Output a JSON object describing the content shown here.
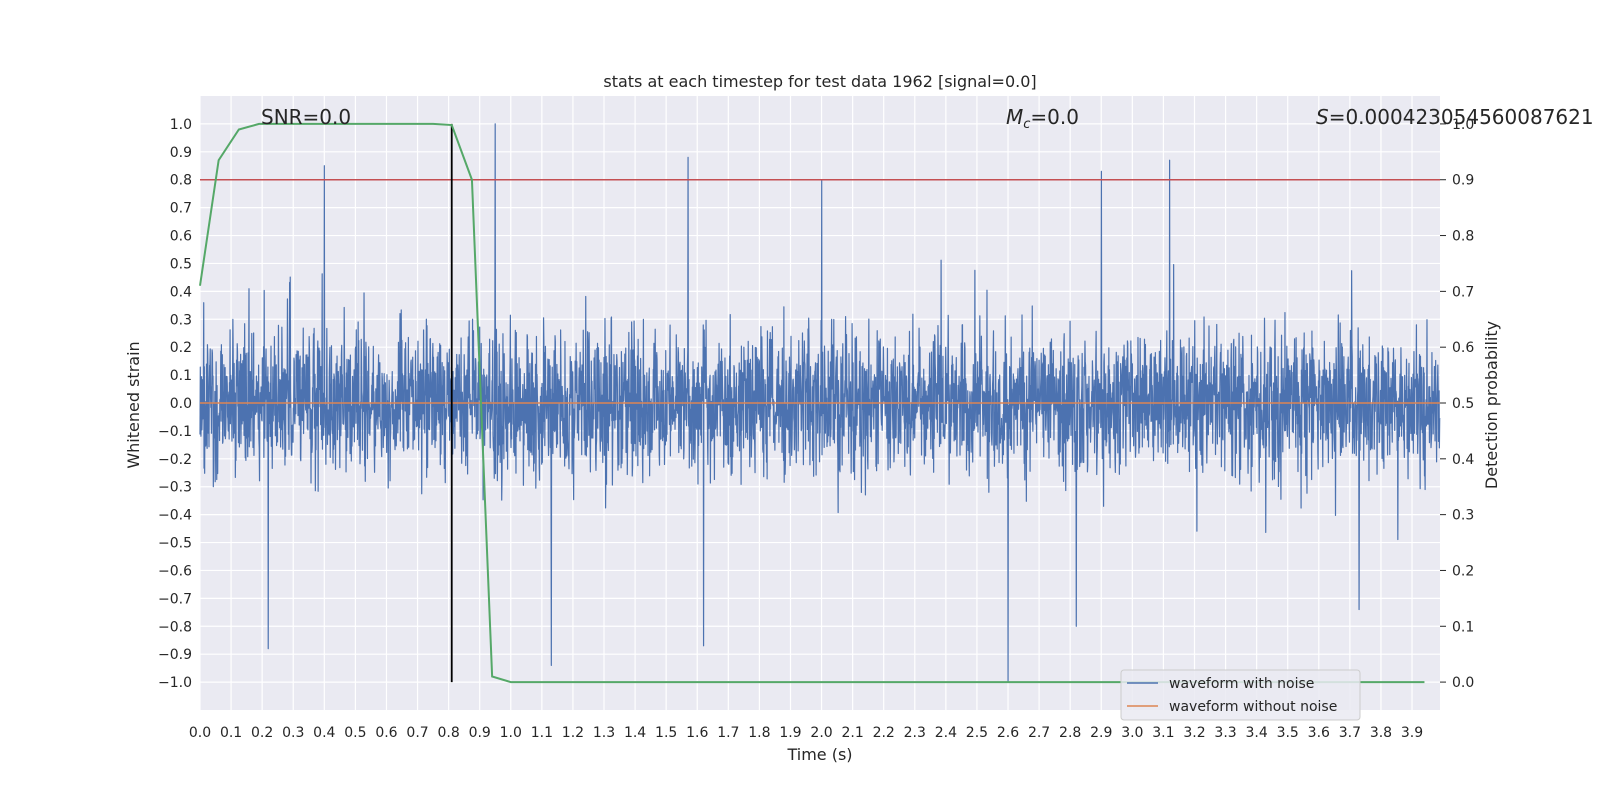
{
  "chart_data": {
    "type": "line",
    "title": "stats at each timestep for test data 1962 [signal=0.0]",
    "xlabel": "Time (s)",
    "ylabel": "Whitened strain",
    "y2label": "Detection probability",
    "xlim": [
      0.0,
      3.99
    ],
    "ylim": [
      -1.1,
      1.1
    ],
    "y2lim": [
      -0.05,
      1.05
    ],
    "x_ticks": [
      "0.0",
      "0.1",
      "0.2",
      "0.3",
      "0.4",
      "0.5",
      "0.6",
      "0.7",
      "0.8",
      "0.9",
      "1.0",
      "1.1",
      "1.2",
      "1.3",
      "1.4",
      "1.5",
      "1.6",
      "1.7",
      "1.8",
      "1.9",
      "2.0",
      "2.1",
      "2.2",
      "2.3",
      "2.4",
      "2.5",
      "2.6",
      "2.7",
      "2.8",
      "2.9",
      "3.0",
      "3.1",
      "3.2",
      "3.3",
      "3.4",
      "3.5",
      "3.6",
      "3.7",
      "3.8",
      "3.9"
    ],
    "y_ticks": [
      "-1.0",
      "-0.9",
      "-0.8",
      "-0.7",
      "-0.6",
      "-0.5",
      "-0.4",
      "-0.3",
      "-0.2",
      "-0.1",
      "0.0",
      "0.1",
      "0.2",
      "0.3",
      "0.4",
      "0.5",
      "0.6",
      "0.7",
      "0.8",
      "0.9",
      "1.0"
    ],
    "y2_ticks": [
      "0.0",
      "0.1",
      "0.2",
      "0.3",
      "0.4",
      "0.5",
      "0.6",
      "0.7",
      "0.8",
      "0.9",
      "1.0"
    ],
    "grid": true,
    "legend_placement": "lower-right",
    "series": [
      {
        "name": "waveform with noise",
        "color": "#4c72b0",
        "axis": "left",
        "x_range": [
          0.0,
          3.99
        ],
        "spikes": [
          {
            "x": 0.4,
            "y": 0.85
          },
          {
            "x": 0.95,
            "y": 1.0
          },
          {
            "x": 1.57,
            "y": 0.88
          },
          {
            "x": 2.0,
            "y": 0.8
          },
          {
            "x": 2.9,
            "y": 0.83
          },
          {
            "x": 3.12,
            "y": 0.87
          },
          {
            "x": 0.22,
            "y": -0.88
          },
          {
            "x": 1.13,
            "y": -0.94
          },
          {
            "x": 1.62,
            "y": -0.87
          },
          {
            "x": 2.6,
            "y": -1.0
          },
          {
            "x": 2.82,
            "y": -0.8
          },
          {
            "x": 3.73,
            "y": -0.74
          }
        ]
      },
      {
        "name": "waveform without noise",
        "color": "#dd8452",
        "axis": "left",
        "x": [
          0.0,
          3.99
        ],
        "y": [
          0.0,
          0.0
        ]
      },
      {
        "name": "",
        "color": "#55a868",
        "axis": "right",
        "x": [
          0.0,
          0.06,
          0.125,
          0.19,
          0.25,
          0.5,
          0.75,
          0.81,
          0.875,
          0.94,
          1.0,
          1.5,
          2.0,
          2.5,
          3.0,
          3.5,
          3.94
        ],
        "y": [
          0.71,
          0.935,
          0.99,
          1.0,
          1.0,
          1.0,
          1.0,
          0.998,
          0.9,
          0.01,
          0.0,
          0.0,
          0.0,
          0.0,
          0.0,
          0.0,
          0.0
        ]
      }
    ],
    "threshold_line": {
      "y2": 0.9,
      "color": "#c44e52"
    },
    "vertical_line": {
      "x": 0.81,
      "y_from": -1.0,
      "y_to": 1.0,
      "color": "#000000"
    },
    "annotations": {
      "snr_text": "SNR=0.0",
      "mc_symbol": "M",
      "mc_sub": "c",
      "mc_value": "=0.0",
      "s_symbol": "S",
      "s_value": "=0.000423054560087621"
    }
  }
}
